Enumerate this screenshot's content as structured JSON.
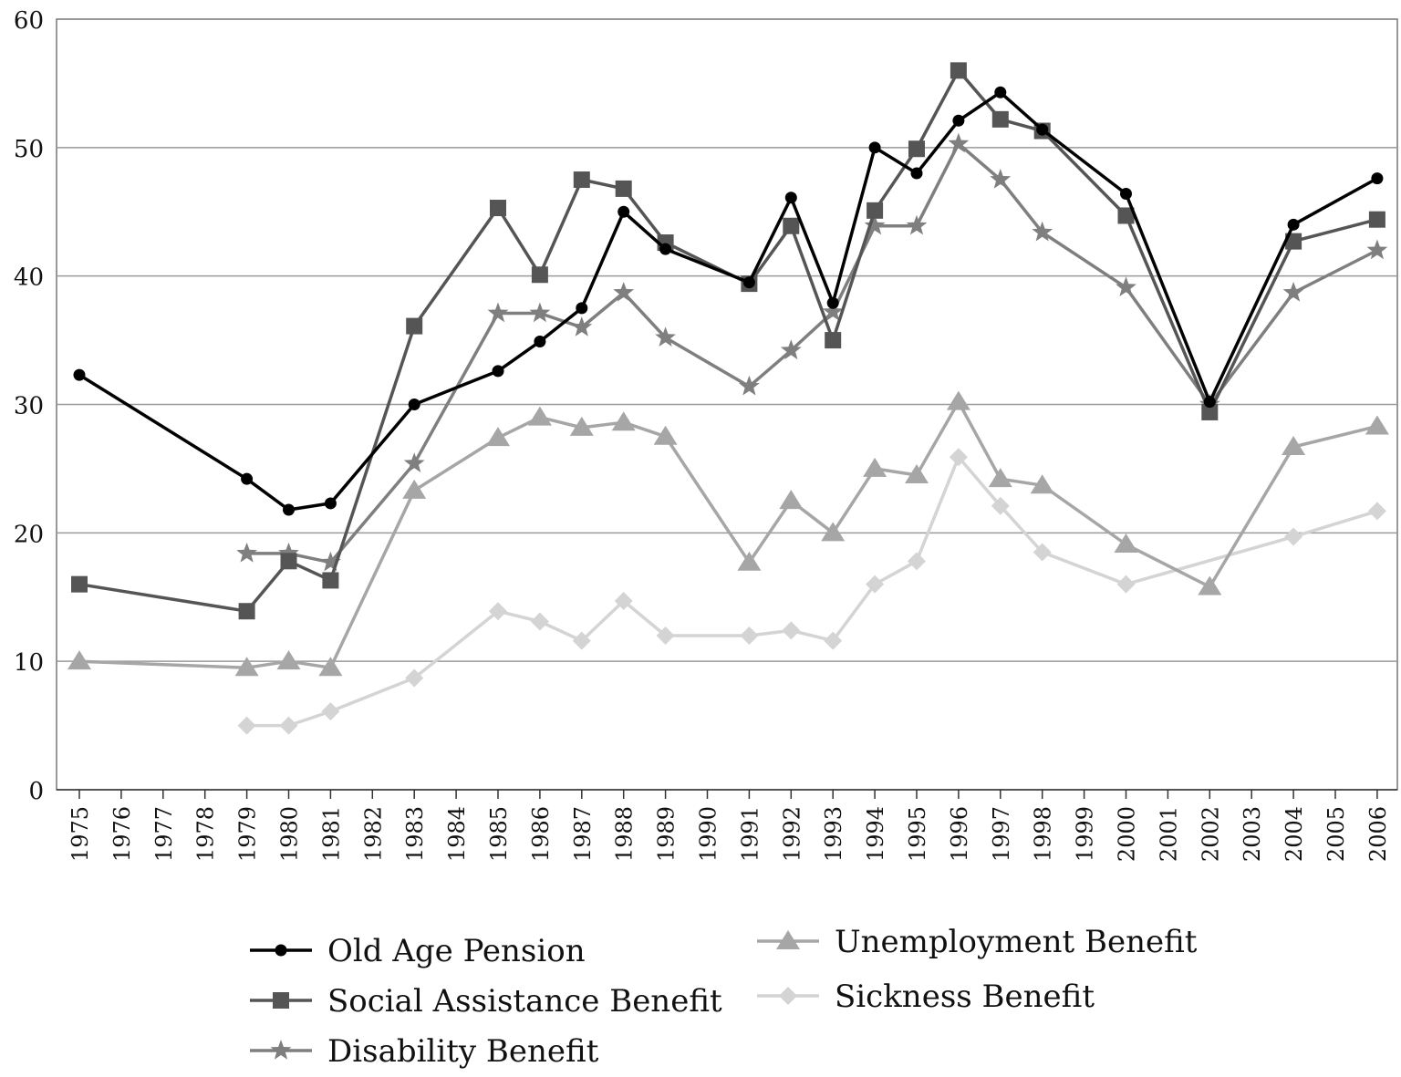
{
  "chart_data": {
    "type": "line",
    "ylim": [
      0,
      60
    ],
    "yticks": [
      "0",
      "10",
      "20",
      "30",
      "40",
      "50",
      "60"
    ],
    "grid": true,
    "legend_position": "bottom",
    "categories": [
      "1975",
      "1976",
      "1977",
      "1978",
      "1979",
      "1980",
      "1981",
      "1982",
      "1983",
      "1984",
      "1985",
      "1986",
      "1987",
      "1988",
      "1989",
      "1990",
      "1991",
      "1992",
      "1993",
      "1994",
      "1995",
      "1996",
      "1997",
      "1998",
      "1999",
      "2000",
      "2001",
      "2002",
      "2003",
      "2004",
      "2005",
      "2006"
    ],
    "series": [
      {
        "name": "Old Age Pension",
        "color": "#000000",
        "marker": "circle",
        "points": [
          [
            1975,
            32.3
          ],
          [
            1979,
            24.2
          ],
          [
            1980,
            21.8
          ],
          [
            1981,
            22.3
          ],
          [
            1983,
            30.0
          ],
          [
            1985,
            32.6
          ],
          [
            1986,
            34.9
          ],
          [
            1987,
            37.5
          ],
          [
            1988,
            45.0
          ],
          [
            1989,
            42.1
          ],
          [
            1991,
            39.5
          ],
          [
            1992,
            46.1
          ],
          [
            1993,
            37.9
          ],
          [
            1994,
            50.0
          ],
          [
            1995,
            48.0
          ],
          [
            1996,
            52.1
          ],
          [
            1997,
            54.3
          ],
          [
            1998,
            51.4
          ],
          [
            2000,
            46.4
          ],
          [
            2002,
            30.2
          ],
          [
            2004,
            44.0
          ],
          [
            2006,
            47.6
          ]
        ]
      },
      {
        "name": "Social Assistance Benefit",
        "color": "#555555",
        "marker": "square",
        "points": [
          [
            1975,
            16.0
          ],
          [
            1979,
            13.9
          ],
          [
            1980,
            17.8
          ],
          [
            1981,
            16.3
          ],
          [
            1983,
            36.1
          ],
          [
            1985,
            45.3
          ],
          [
            1986,
            40.1
          ],
          [
            1987,
            47.5
          ],
          [
            1988,
            46.8
          ],
          [
            1989,
            42.6
          ],
          [
            1991,
            39.4
          ],
          [
            1992,
            43.9
          ],
          [
            1993,
            35.0
          ],
          [
            1994,
            45.1
          ],
          [
            1995,
            49.9
          ],
          [
            1996,
            56.0
          ],
          [
            1997,
            52.2
          ],
          [
            1998,
            51.3
          ],
          [
            2000,
            44.7
          ],
          [
            2002,
            29.4
          ],
          [
            2004,
            42.7
          ],
          [
            2006,
            44.4
          ]
        ]
      },
      {
        "name": "Disability Benefit",
        "color": "#7f7f7f",
        "marker": "star",
        "points": [
          [
            1979,
            18.4
          ],
          [
            1980,
            18.4
          ],
          [
            1981,
            17.7
          ],
          [
            1983,
            25.4
          ],
          [
            1985,
            37.1
          ],
          [
            1986,
            37.1
          ],
          [
            1987,
            36.0
          ],
          [
            1988,
            38.7
          ],
          [
            1989,
            35.2
          ],
          [
            1991,
            31.4
          ],
          [
            1992,
            34.2
          ],
          [
            1993,
            37.2
          ],
          [
            1994,
            43.9
          ],
          [
            1995,
            43.9
          ],
          [
            1996,
            50.3
          ],
          [
            1997,
            47.5
          ],
          [
            1998,
            43.4
          ],
          [
            2000,
            39.1
          ],
          [
            2002,
            30.0
          ],
          [
            2004,
            38.7
          ],
          [
            2006,
            42.0
          ]
        ]
      },
      {
        "name": "Unemployment Benefit",
        "color": "#a6a6a6",
        "marker": "triangle",
        "points": [
          [
            1975,
            10.0
          ],
          [
            1979,
            9.5
          ],
          [
            1980,
            10.0
          ],
          [
            1981,
            9.5
          ],
          [
            1983,
            23.3
          ],
          [
            1985,
            27.4
          ],
          [
            1986,
            29.0
          ],
          [
            1987,
            28.2
          ],
          [
            1988,
            28.6
          ],
          [
            1989,
            27.5
          ],
          [
            1991,
            17.7
          ],
          [
            1992,
            22.5
          ],
          [
            1993,
            20.0
          ],
          [
            1994,
            25.0
          ],
          [
            1995,
            24.5
          ],
          [
            1996,
            30.2
          ],
          [
            1997,
            24.2
          ],
          [
            1998,
            23.7
          ],
          [
            2000,
            19.1
          ],
          [
            2002,
            15.8
          ],
          [
            2004,
            26.7
          ],
          [
            2006,
            28.3
          ]
        ]
      },
      {
        "name": "Sickness Benefit",
        "color": "#d4d4d4",
        "marker": "diamond",
        "points": [
          [
            1979,
            5.0
          ],
          [
            1980,
            5.0
          ],
          [
            1981,
            6.1
          ],
          [
            1983,
            8.7
          ],
          [
            1985,
            13.9
          ],
          [
            1986,
            13.1
          ],
          [
            1987,
            11.6
          ],
          [
            1988,
            14.7
          ],
          [
            1989,
            12.0
          ],
          [
            1991,
            12.0
          ],
          [
            1992,
            12.4
          ],
          [
            1993,
            11.6
          ],
          [
            1994,
            16.0
          ],
          [
            1995,
            17.8
          ],
          [
            1996,
            25.9
          ],
          [
            1997,
            22.1
          ],
          [
            1998,
            18.5
          ],
          [
            2000,
            16.0
          ],
          [
            2004,
            19.7
          ],
          [
            2006,
            21.7
          ]
        ]
      }
    ]
  }
}
